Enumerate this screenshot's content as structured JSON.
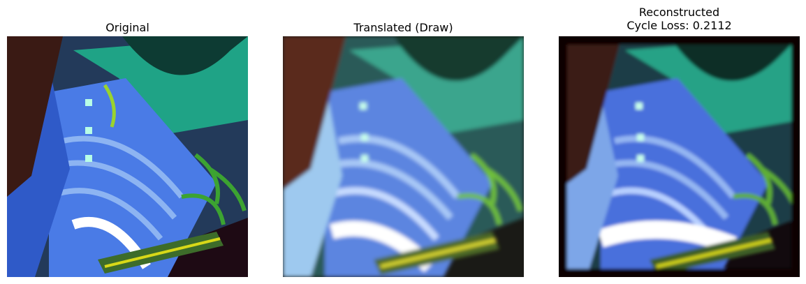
{
  "panels": [
    {
      "title": "Original"
    },
    {
      "title": "Translated (Draw)"
    },
    {
      "title": "Reconstructed\nCycle Loss: 0.2112"
    }
  ],
  "colors": {
    "dark_frame": "#1e0a14",
    "teal": "#1fa386",
    "blue": "#4a7be6",
    "light_blue": "#8db4f2",
    "green_plant": "#3ca331",
    "yellow": "#d8d818",
    "brown": "#5a2a1e"
  }
}
